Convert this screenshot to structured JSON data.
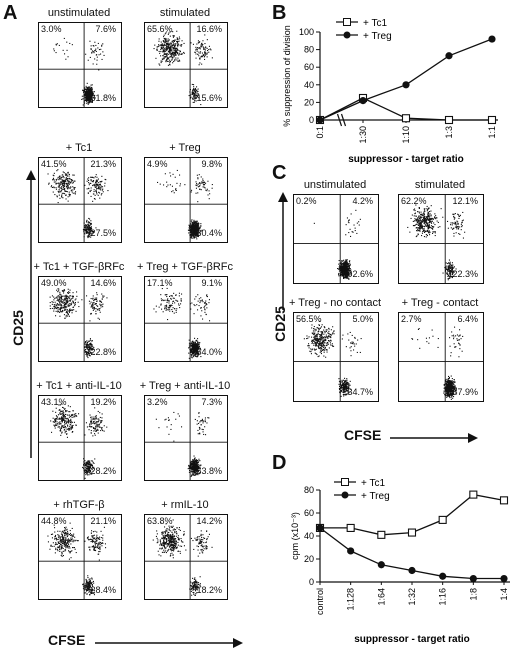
{
  "panels": {
    "A": "A",
    "B": "B",
    "C": "C",
    "D": "D"
  },
  "panel_a": {
    "ylabel": "CD25",
    "xlabel": "CFSE",
    "plots": [
      {
        "title": "unstimulated",
        "ul": "3.0%",
        "ur": "7.6%",
        "lr": "81.8%"
      },
      {
        "title": "stimulated",
        "ul": "65.6%",
        "ur": "16.6%",
        "lr": "15.6%"
      },
      {
        "title": "+ Tc1",
        "ul": "41.5%",
        "ur": "21.3%",
        "lr": "27.5%"
      },
      {
        "title": "+ Treg",
        "ul": "4.9%",
        "ur": "9.8%",
        "lr": "80.4%"
      },
      {
        "title": "+ Tc1 + TGF-βRFc",
        "ul": "49.0%",
        "ur": "14.6%",
        "lr": "22.8%"
      },
      {
        "title": "+ Treg + TGF-βRFc",
        "ul": "17.1%",
        "ur": "9.1%",
        "lr": "64.0%"
      },
      {
        "title": "+ Tc1 + anti-IL-10",
        "ul": "43.1%",
        "ur": "19.2%",
        "lr": "28.2%"
      },
      {
        "title": "+ Treg + anti-IL-10",
        "ul": "3.2%",
        "ur": "7.3%",
        "lr": "63.8%"
      },
      {
        "title": "+ rhTGF-β",
        "ul": "44.8%",
        "ur": "21.1%",
        "lr": "28.4%"
      },
      {
        "title": "+ rmIL-10",
        "ul": "63.8%",
        "ur": "14.2%",
        "lr": "18.2%"
      }
    ]
  },
  "panel_c": {
    "ylabel": "CD25",
    "xlabel": "CFSE",
    "plots": [
      {
        "title": "unstimulated",
        "ul": "0.2%",
        "ur": "4.2%",
        "lr": "92.6%"
      },
      {
        "title": "stimulated",
        "ul": "62.2%",
        "ur": "12.1%",
        "lr": "22.3%"
      },
      {
        "title": "+ Treg - no contact",
        "ul": "56.5%",
        "ur": "5.0%",
        "lr": "34.7%"
      },
      {
        "title": "+ Treg - contact",
        "ul": "2.7%",
        "ur": "6.4%",
        "lr": "87.9%"
      }
    ]
  },
  "chart_data": [
    {
      "panel": "B",
      "type": "line",
      "categories": [
        "0:1",
        "1:30",
        "1:10",
        "1:3",
        "1:1"
      ],
      "series": [
        {
          "name": "+ Tc1",
          "marker": "open-square",
          "values": [
            0,
            25,
            2,
            0,
            0
          ]
        },
        {
          "name": "+ Treg",
          "marker": "filled-circle",
          "values": [
            0,
            22,
            40,
            73,
            92
          ]
        }
      ],
      "xlabel": "suppressor - target ratio",
      "ylabel": "% suppression of division",
      "ylim": [
        0,
        100
      ],
      "yticks": [
        0,
        20,
        40,
        60,
        80,
        100
      ],
      "axis_break": "between 0:1 and 1:30",
      "legend": "top-left"
    },
    {
      "panel": "D",
      "type": "line",
      "categories": [
        "control",
        "1:128",
        "1:64",
        "1:32",
        "1:16",
        "1:8",
        "1:4"
      ],
      "series": [
        {
          "name": "+ Tc1",
          "marker": "open-square",
          "values": [
            47,
            47,
            41,
            43,
            54,
            76,
            71
          ]
        },
        {
          "name": "+ Treg",
          "marker": "filled-circle",
          "values": [
            47,
            27,
            15,
            10,
            5,
            3,
            3
          ]
        }
      ],
      "xlabel": "suppressor - target ratio",
      "ylabel": "cpm (x10⁻³)",
      "ylim": [
        0,
        80
      ],
      "yticks": [
        0,
        20,
        40,
        60,
        80
      ],
      "legend": "top-left"
    }
  ]
}
